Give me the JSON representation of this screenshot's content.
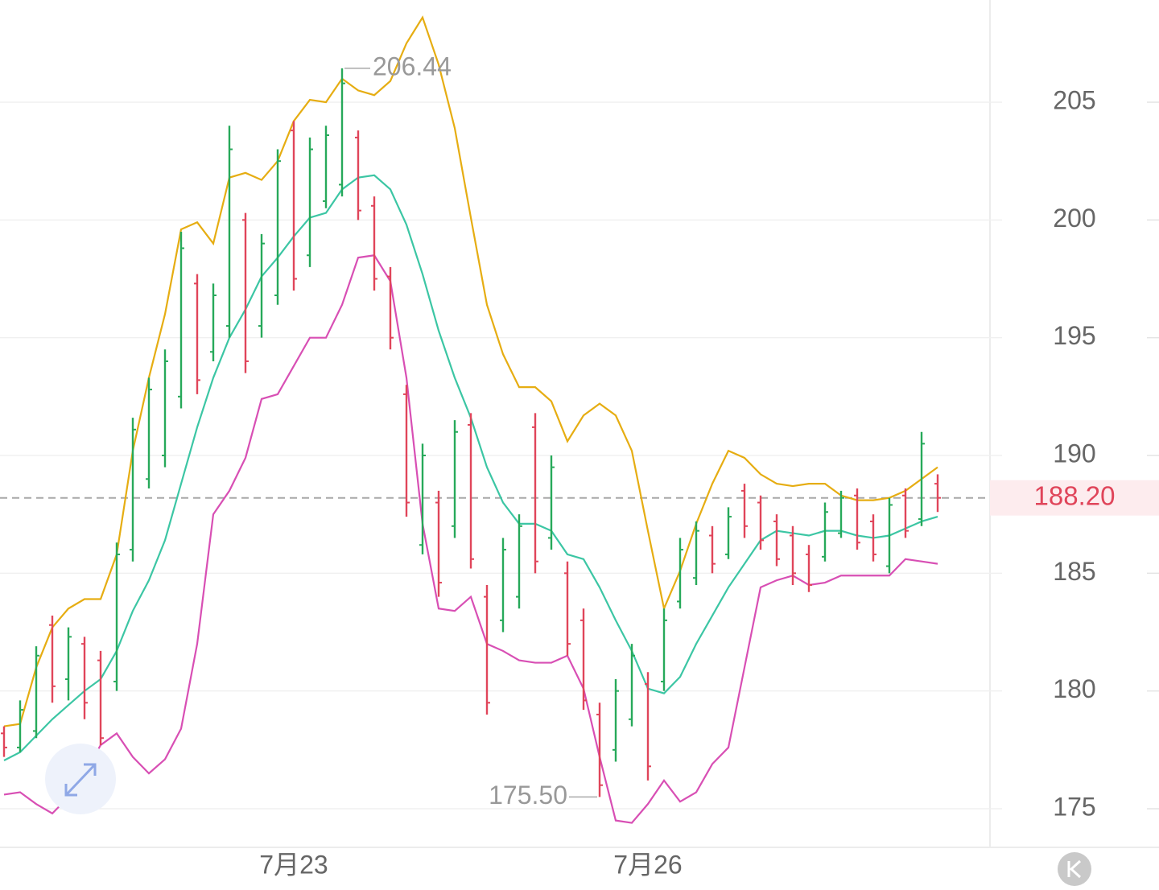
{
  "chart_data": {
    "type": "ohlc",
    "categories": [
      null,
      null,
      null,
      null,
      null,
      null,
      null,
      null,
      null,
      null,
      null,
      null,
      null,
      null,
      null,
      null,
      null,
      null,
      "7月23",
      null,
      null,
      null,
      null,
      null,
      null,
      null,
      null,
      null,
      null,
      null,
      null,
      null,
      null,
      null,
      null,
      null,
      null,
      null,
      null,
      null,
      "7月26",
      null,
      null,
      null,
      null,
      null,
      null,
      null,
      null,
      null,
      null,
      null,
      null,
      null,
      null,
      null,
      null,
      null,
      null
    ],
    "open": [
      178.2,
      177.6,
      178.3,
      182.8,
      180.5,
      182.0,
      181.3,
      180.4,
      186.0,
      189.0,
      190.0,
      192.5,
      197.3,
      194.4,
      195.5,
      200.0,
      195.5,
      196.8,
      203.8,
      198.5,
      200.8,
      201.5,
      203.5,
      200.6,
      197.6,
      192.6,
      186.2,
      188.0,
      187.0,
      191.3,
      184.0,
      183.0,
      184.0,
      191.2,
      186.5,
      185.0,
      183.0,
      179.0,
      177.5,
      178.8,
      180.3,
      180.4,
      183.8,
      184.8,
      186.6,
      185.8,
      188.5,
      188.0,
      187.2,
      186.6,
      185.8,
      185.7,
      186.7,
      188.3,
      187.2,
      185.3,
      188.3,
      187.3,
      188.8
    ],
    "high": [
      178.5,
      179.6,
      181.9,
      183.2,
      182.7,
      182.3,
      181.7,
      186.3,
      191.6,
      193.3,
      194.5,
      199.5,
      197.7,
      197.3,
      204.0,
      200.3,
      199.4,
      203.0,
      204.2,
      203.5,
      204.0,
      206.44,
      203.8,
      201.0,
      198.0,
      193.0,
      190.5,
      188.5,
      191.5,
      191.8,
      184.5,
      186.5,
      187.5,
      191.8,
      190.0,
      185.5,
      183.5,
      179.5,
      180.5,
      182.0,
      180.8,
      183.5,
      186.5,
      187.2,
      187.0,
      187.8,
      188.8,
      188.3,
      187.5,
      187.0,
      186.2,
      188.0,
      188.5,
      188.6,
      187.5,
      188.2,
      188.6,
      191.0,
      189.2
    ],
    "low": [
      177.2,
      177.4,
      178.0,
      179.5,
      179.6,
      178.8,
      177.7,
      180.0,
      185.5,
      188.6,
      189.5,
      192.0,
      192.6,
      194.0,
      195.0,
      193.5,
      195.0,
      196.4,
      197.0,
      198.0,
      200.5,
      201.0,
      200.0,
      197.0,
      194.5,
      187.4,
      185.8,
      184.0,
      186.5,
      185.2,
      179.0,
      182.5,
      183.5,
      185.0,
      186.0,
      181.5,
      179.2,
      175.5,
      177.0,
      178.5,
      176.2,
      180.0,
      183.5,
      184.5,
      185.0,
      185.6,
      186.5,
      186.0,
      185.3,
      184.5,
      184.2,
      185.5,
      186.5,
      186.0,
      185.5,
      185.0,
      186.5,
      187.0,
      187.6
    ],
    "close": [
      177.6,
      179.2,
      181.5,
      180.2,
      182.3,
      179.5,
      178.0,
      185.8,
      191.1,
      192.8,
      194.0,
      198.8,
      193.2,
      196.8,
      203.0,
      194.0,
      199.0,
      202.5,
      197.5,
      203.0,
      203.6,
      205.8,
      200.4,
      197.5,
      195.0,
      188.0,
      190.0,
      184.6,
      191.0,
      185.6,
      179.5,
      186.0,
      187.0,
      185.5,
      189.5,
      182.0,
      179.6,
      176.0,
      180.0,
      181.5,
      176.8,
      183.0,
      186.0,
      186.8,
      185.4,
      187.4,
      187.0,
      186.4,
      185.6,
      185.0,
      184.5,
      187.6,
      188.2,
      186.3,
      185.8,
      187.9,
      186.8,
      190.5,
      188.2
    ],
    "up_color": "#27a95a",
    "down_color": "#e0455a",
    "bands": [
      {
        "color": "#e6ad12",
        "values": [
          178.5,
          178.6,
          181.0,
          182.7,
          183.5,
          183.9,
          183.9,
          185.8,
          190.2,
          193.3,
          196.0,
          199.6,
          199.9,
          199.0,
          201.8,
          202.0,
          201.7,
          202.5,
          204.2,
          205.1,
          205.0,
          206.0,
          205.5,
          205.3,
          205.9,
          207.5,
          208.6,
          206.6,
          203.9,
          200.1,
          196.4,
          194.3,
          192.9,
          192.9,
          192.3,
          190.6,
          191.7,
          192.2,
          191.7,
          190.2,
          186.8,
          183.5,
          185.1,
          187.1,
          188.8,
          190.2,
          189.9,
          189.2,
          188.8,
          188.7,
          188.8,
          188.8,
          188.3,
          188.1,
          188.1,
          188.2,
          188.5,
          189.0,
          189.5
        ]
      },
      {
        "color": "#3cc6a4",
        "values": [
          177.05,
          177.4,
          178.1,
          178.8,
          179.4,
          180.0,
          180.5,
          181.7,
          183.4,
          184.7,
          186.4,
          188.8,
          191.2,
          193.3,
          195.0,
          196.2,
          197.6,
          198.4,
          199.3,
          200.1,
          200.3,
          201.3,
          201.8,
          201.9,
          201.3,
          199.8,
          197.7,
          195.3,
          193.3,
          191.6,
          189.5,
          188.0,
          187.1,
          187.1,
          186.8,
          185.8,
          185.6,
          184.4,
          183.0,
          181.7,
          180.1,
          179.9,
          180.6,
          182.0,
          183.2,
          184.4,
          185.4,
          186.4,
          186.8,
          186.7,
          186.6,
          186.8,
          186.8,
          186.6,
          186.5,
          186.6,
          186.9,
          187.2,
          187.4
        ]
      },
      {
        "color": "#d84fb4",
        "values": [
          175.6,
          175.7,
          175.2,
          174.8,
          175.5,
          176.5,
          177.7,
          178.2,
          177.2,
          176.5,
          177.1,
          178.4,
          182.0,
          187.5,
          188.5,
          189.9,
          192.4,
          192.6,
          193.8,
          195.0,
          195.0,
          196.4,
          198.4,
          198.5,
          197.4,
          193.3,
          187.1,
          183.5,
          183.4,
          184.0,
          182.0,
          181.7,
          181.3,
          181.2,
          181.2,
          181.5,
          180.1,
          177.2,
          174.5,
          174.4,
          175.2,
          176.2,
          175.3,
          175.7,
          176.9,
          177.6,
          181.0,
          184.4,
          184.7,
          184.9,
          184.5,
          184.6,
          184.9,
          184.9,
          184.9,
          184.9,
          185.6,
          185.5,
          185.4
        ]
      }
    ],
    "ylim": [
      173.36,
      209.34
    ],
    "yticks": [
      175,
      180,
      185,
      190,
      195,
      200,
      205
    ],
    "grid": true,
    "high_label": 206.44,
    "low_label": {
      "value": 175.5,
      "label": "175.50"
    },
    "last_price": {
      "value": 188.2,
      "label": "188.20"
    },
    "last_price_color": "#e0455a"
  }
}
